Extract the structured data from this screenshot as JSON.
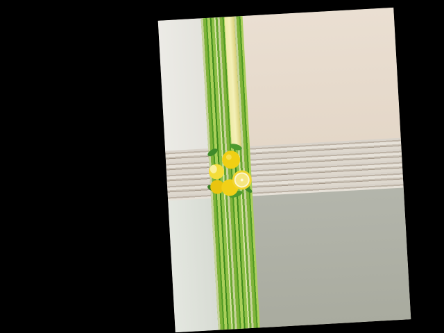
{
  "scene": {
    "description_colors": {
      "background": "#000000",
      "top_right_panel": "#e7ddd1",
      "bottom_right_panel": "#aeb0a5",
      "green_stripe": "#5fa22a",
      "lemon": "#f2d21c"
    }
  }
}
